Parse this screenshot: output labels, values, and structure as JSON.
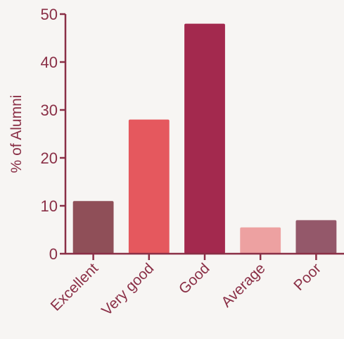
{
  "chart_data": {
    "type": "bar",
    "title": "",
    "xlabel": "",
    "ylabel": "% of Alumni",
    "ylim": [
      0,
      50
    ],
    "yticks": [
      0,
      10,
      20,
      30,
      40,
      50
    ],
    "categories": [
      "Excellent",
      "Very good",
      "Good",
      "Average",
      "Poor"
    ],
    "values": [
      11,
      28,
      48,
      5.5,
      7
    ],
    "bar_colors": [
      "#8f4f58",
      "#e5585e",
      "#a3294e",
      "#eda1a1",
      "#94586a"
    ],
    "axis_color": "#8a2f46",
    "label_color": "#8a2f46",
    "grid": false,
    "legend": "none"
  }
}
